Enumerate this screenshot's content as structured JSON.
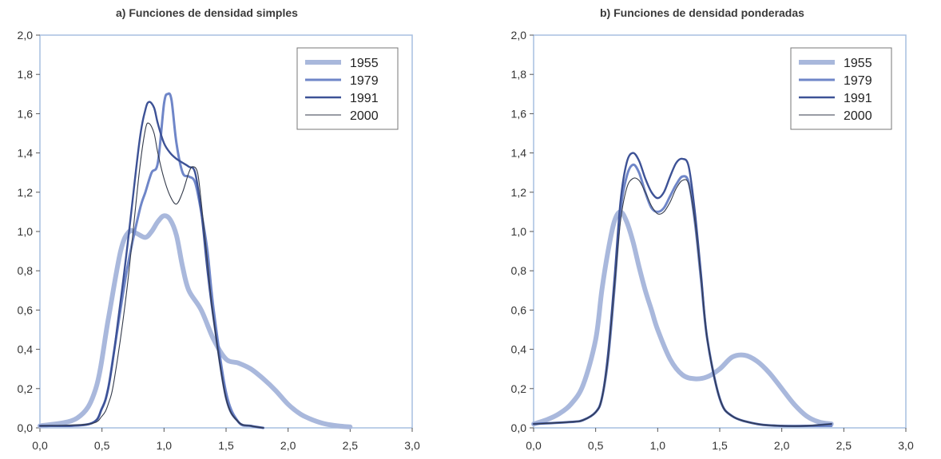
{
  "chart_data": [
    {
      "type": "line",
      "title": "a) Funciones de densidad simples",
      "xlim": [
        0,
        3
      ],
      "ylim": [
        0,
        2
      ],
      "xticks": [
        "0,0",
        "0,5",
        "1,0",
        "1,5",
        "2,0",
        "2,5",
        "3,0"
      ],
      "yticks": [
        "0,0",
        "0,2",
        "0,4",
        "0,6",
        "0,8",
        "1,0",
        "1,2",
        "1,4",
        "1,6",
        "1,8",
        "2,0"
      ],
      "grid": false,
      "legend_position": "top-right",
      "series": [
        {
          "name": "1955",
          "color": "#a9b8dc",
          "x": [
            0,
            0.3,
            0.45,
            0.55,
            0.65,
            0.72,
            0.78,
            0.85,
            0.9,
            0.95,
            1.0,
            1.05,
            1.1,
            1.15,
            1.2,
            1.3,
            1.4,
            1.5,
            1.6,
            1.7,
            1.8,
            1.9,
            2.0,
            2.1,
            2.2,
            2.3,
            2.4,
            2.5
          ],
          "y": [
            0.01,
            0.05,
            0.2,
            0.55,
            0.9,
            1.0,
            0.99,
            0.97,
            1.0,
            1.05,
            1.08,
            1.06,
            0.98,
            0.82,
            0.7,
            0.6,
            0.45,
            0.35,
            0.33,
            0.3,
            0.25,
            0.19,
            0.12,
            0.07,
            0.04,
            0.02,
            0.01,
            0.005
          ]
        },
        {
          "name": "1979",
          "color": "#6f86c8",
          "x": [
            0,
            0.4,
            0.5,
            0.55,
            0.6,
            0.7,
            0.8,
            0.85,
            0.9,
            0.95,
            1.0,
            1.03,
            1.06,
            1.1,
            1.15,
            1.2,
            1.25,
            1.3,
            1.35,
            1.4,
            1.5,
            1.6,
            1.7,
            1.8
          ],
          "y": [
            0.01,
            0.02,
            0.1,
            0.2,
            0.4,
            0.8,
            1.1,
            1.2,
            1.3,
            1.35,
            1.65,
            1.7,
            1.67,
            1.45,
            1.3,
            1.28,
            1.25,
            1.1,
            0.9,
            0.6,
            0.18,
            0.03,
            0.01,
            0.0
          ]
        },
        {
          "name": "1991",
          "color": "#3d5296",
          "x": [
            0,
            0.4,
            0.5,
            0.55,
            0.6,
            0.7,
            0.8,
            0.85,
            0.88,
            0.92,
            0.95,
            1.0,
            1.05,
            1.1,
            1.15,
            1.2,
            1.25,
            1.3,
            1.35,
            1.4,
            1.5,
            1.6,
            1.7,
            1.8
          ],
          "y": [
            0.01,
            0.02,
            0.1,
            0.2,
            0.4,
            0.9,
            1.45,
            1.62,
            1.66,
            1.63,
            1.55,
            1.45,
            1.4,
            1.37,
            1.35,
            1.33,
            1.3,
            1.1,
            0.8,
            0.55,
            0.15,
            0.03,
            0.01,
            0.0
          ]
        },
        {
          "name": "2000",
          "color": "#333a4a",
          "x": [
            0,
            0.4,
            0.5,
            0.55,
            0.6,
            0.7,
            0.8,
            0.85,
            0.88,
            0.92,
            0.95,
            1.0,
            1.05,
            1.1,
            1.15,
            1.2,
            1.23,
            1.27,
            1.3,
            1.35,
            1.4,
            1.5,
            1.6,
            1.7,
            1.8
          ],
          "y": [
            0.01,
            0.02,
            0.06,
            0.12,
            0.25,
            0.7,
            1.3,
            1.52,
            1.55,
            1.5,
            1.4,
            1.27,
            1.18,
            1.14,
            1.2,
            1.3,
            1.33,
            1.3,
            1.15,
            0.85,
            0.55,
            0.15,
            0.03,
            0.01,
            0.0
          ]
        }
      ]
    },
    {
      "type": "line",
      "title": "b) Funciones de densidad ponderadas",
      "xlim": [
        0,
        3
      ],
      "ylim": [
        0,
        2
      ],
      "xticks": [
        "0,0",
        "0,5",
        "1,0",
        "1,5",
        "2,0",
        "2,5",
        "3,0"
      ],
      "yticks": [
        "0,0",
        "0,2",
        "0,4",
        "0,6",
        "0,8",
        "1,0",
        "1,2",
        "1,4",
        "1,6",
        "1,8",
        "2,0"
      ],
      "grid": false,
      "legend_position": "top-right",
      "series": [
        {
          "name": "1955",
          "color": "#a9b8dc",
          "x": [
            0,
            0.1,
            0.2,
            0.3,
            0.4,
            0.5,
            0.55,
            0.6,
            0.65,
            0.7,
            0.75,
            0.8,
            0.85,
            0.9,
            0.95,
            1.0,
            1.1,
            1.2,
            1.3,
            1.4,
            1.5,
            1.6,
            1.7,
            1.8,
            1.9,
            2.0,
            2.1,
            2.2,
            2.3,
            2.4
          ],
          "y": [
            0.02,
            0.04,
            0.07,
            0.12,
            0.22,
            0.45,
            0.7,
            0.9,
            1.05,
            1.1,
            1.05,
            0.95,
            0.82,
            0.7,
            0.6,
            0.5,
            0.35,
            0.27,
            0.25,
            0.26,
            0.3,
            0.36,
            0.37,
            0.34,
            0.28,
            0.2,
            0.12,
            0.06,
            0.03,
            0.02
          ]
        },
        {
          "name": "1979",
          "color": "#6f86c8",
          "x": [
            0,
            0.3,
            0.4,
            0.5,
            0.55,
            0.6,
            0.65,
            0.7,
            0.75,
            0.8,
            0.85,
            0.9,
            0.95,
            1.0,
            1.05,
            1.1,
            1.15,
            1.2,
            1.25,
            1.3,
            1.35,
            1.4,
            1.5,
            1.6,
            1.8,
            2.0,
            2.2,
            2.4
          ],
          "y": [
            0.02,
            0.03,
            0.04,
            0.08,
            0.15,
            0.35,
            0.7,
            1.1,
            1.28,
            1.34,
            1.3,
            1.2,
            1.12,
            1.1,
            1.12,
            1.18,
            1.24,
            1.28,
            1.25,
            1.05,
            0.75,
            0.45,
            0.15,
            0.06,
            0.02,
            0.01,
            0.01,
            0.01
          ]
        },
        {
          "name": "1991",
          "color": "#3d5296",
          "x": [
            0,
            0.3,
            0.4,
            0.5,
            0.55,
            0.6,
            0.65,
            0.7,
            0.75,
            0.8,
            0.85,
            0.9,
            0.95,
            1.0,
            1.05,
            1.1,
            1.15,
            1.2,
            1.25,
            1.3,
            1.35,
            1.4,
            1.5,
            1.6,
            1.8,
            2.0,
            2.2,
            2.4
          ],
          "y": [
            0.02,
            0.03,
            0.04,
            0.08,
            0.15,
            0.38,
            0.75,
            1.15,
            1.35,
            1.4,
            1.36,
            1.27,
            1.2,
            1.17,
            1.2,
            1.28,
            1.35,
            1.37,
            1.33,
            1.1,
            0.78,
            0.45,
            0.15,
            0.06,
            0.02,
            0.01,
            0.01,
            0.02
          ]
        },
        {
          "name": "2000",
          "color": "#333a4a",
          "x": [
            0,
            0.3,
            0.4,
            0.5,
            0.55,
            0.6,
            0.65,
            0.7,
            0.75,
            0.8,
            0.85,
            0.9,
            0.95,
            1.0,
            1.05,
            1.1,
            1.15,
            1.2,
            1.25,
            1.3,
            1.35,
            1.4,
            1.5,
            1.6,
            1.8,
            2.0,
            2.2,
            2.4
          ],
          "y": [
            0.02,
            0.03,
            0.04,
            0.08,
            0.15,
            0.35,
            0.7,
            1.05,
            1.22,
            1.27,
            1.26,
            1.2,
            1.13,
            1.09,
            1.1,
            1.15,
            1.22,
            1.26,
            1.24,
            1.05,
            0.75,
            0.45,
            0.15,
            0.06,
            0.02,
            0.01,
            0.01,
            0.02
          ]
        }
      ]
    }
  ]
}
